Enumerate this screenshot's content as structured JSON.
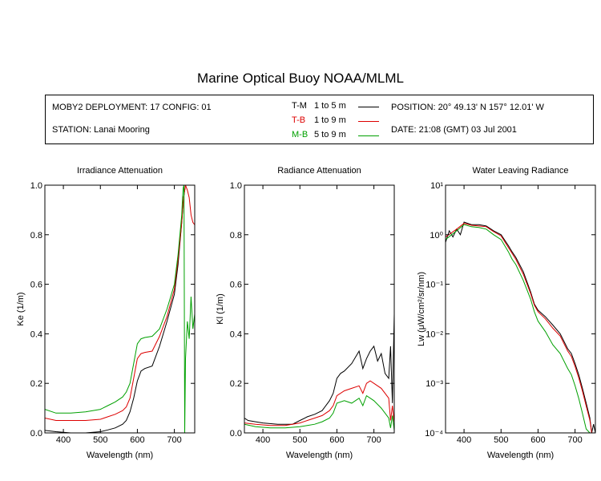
{
  "title": "Marine Optical Buoy NOAA/MLML",
  "info": {
    "deployment": "MOBY2 DEPLOYMENT: 17 CONFIG: 01",
    "station": "STATION: Lanai Mooring",
    "position": "POSITION: 20° 49.13' N   157° 12.01' W",
    "date": "DATE: 21:08 (GMT) 03 Jul 2001",
    "legend": [
      {
        "code": "T-M",
        "range": "1 to 5  m",
        "color": "#000000"
      },
      {
        "code": "T-B",
        "range": "1 to 9  m",
        "color": "#dd0000"
      },
      {
        "code": "M-B",
        "range": "5 to 9  m",
        "color": "#00a000"
      }
    ]
  },
  "chart_data": [
    {
      "type": "line",
      "title": "Irradiance Attenuation",
      "xlabel": "Wavelength (nm)",
      "ylabel": "Ke  (1/m)",
      "xlim": [
        350,
        755
      ],
      "ylim": [
        0,
        1
      ],
      "xticks": [
        "400",
        "500",
        "600",
        "700"
      ],
      "yticks": [
        "0.0",
        "0.2",
        "0.4",
        "0.6",
        "0.8",
        "1.0"
      ],
      "series": [
        {
          "code": "T-M",
          "color": "#000000",
          "x": [
            350,
            380,
            420,
            460,
            500,
            520,
            540,
            560,
            570,
            580,
            590,
            600,
            610,
            620,
            640,
            660,
            680,
            700,
            710,
            720,
            725,
            730
          ],
          "y": [
            0.01,
            0.005,
            0.0,
            0.0,
            0.005,
            0.012,
            0.02,
            0.035,
            0.05,
            0.085,
            0.14,
            0.21,
            0.25,
            0.26,
            0.27,
            0.35,
            0.45,
            0.56,
            0.68,
            0.85,
            0.95,
            1.0
          ]
        },
        {
          "code": "T-B",
          "color": "#dd0000",
          "x": [
            350,
            380,
            420,
            460,
            500,
            520,
            540,
            560,
            570,
            580,
            590,
            600,
            610,
            620,
            640,
            660,
            680,
            700,
            710,
            720,
            725,
            730,
            735,
            740,
            745,
            750,
            755
          ],
          "y": [
            0.06,
            0.05,
            0.05,
            0.05,
            0.055,
            0.065,
            0.075,
            0.09,
            0.105,
            0.14,
            0.22,
            0.3,
            0.32,
            0.325,
            0.33,
            0.39,
            0.47,
            0.58,
            0.7,
            0.85,
            0.95,
            1.0,
            0.98,
            0.95,
            0.88,
            0.85,
            0.84
          ]
        },
        {
          "code": "M-B",
          "color": "#00a000",
          "x": [
            350,
            380,
            420,
            460,
            500,
            520,
            540,
            560,
            570,
            580,
            590,
            600,
            610,
            620,
            640,
            660,
            680,
            700,
            710,
            720,
            722,
            724,
            726,
            728,
            730,
            735,
            740,
            745,
            750,
            755
          ],
          "y": [
            0.095,
            0.08,
            0.08,
            0.085,
            0.095,
            0.11,
            0.125,
            0.145,
            0.165,
            0.2,
            0.28,
            0.36,
            0.38,
            0.385,
            0.39,
            0.42,
            0.5,
            0.6,
            0.72,
            0.88,
            0.95,
            0.99,
            1.0,
            0.0,
            0.3,
            0.45,
            0.38,
            0.55,
            0.42,
            0.48
          ]
        }
      ]
    },
    {
      "type": "line",
      "title": "Radiance Attenuation",
      "xlabel": "Wavelength (nm)",
      "ylabel": "Kl  (1/m)",
      "xlim": [
        350,
        755
      ],
      "ylim": [
        0,
        1
      ],
      "xticks": [
        "400",
        "500",
        "600",
        "700"
      ],
      "yticks": [
        "0.0",
        "0.2",
        "0.4",
        "0.6",
        "0.8",
        "1.0"
      ],
      "series": [
        {
          "code": "T-M",
          "color": "#000000",
          "x": [
            350,
            360,
            380,
            400,
            440,
            480,
            500,
            520,
            540,
            560,
            580,
            590,
            600,
            610,
            620,
            640,
            660,
            670,
            680,
            690,
            700,
            710,
            720,
            730,
            740,
            745,
            750,
            755
          ],
          "y": [
            0.06,
            0.05,
            0.045,
            0.04,
            0.035,
            0.035,
            0.05,
            0.065,
            0.075,
            0.09,
            0.13,
            0.16,
            0.22,
            0.24,
            0.25,
            0.28,
            0.33,
            0.26,
            0.3,
            0.33,
            0.35,
            0.29,
            0.32,
            0.24,
            0.22,
            0.35,
            0.12,
            0.48
          ]
        },
        {
          "code": "T-B",
          "color": "#dd0000",
          "x": [
            350,
            380,
            420,
            460,
            500,
            520,
            540,
            560,
            580,
            590,
            600,
            620,
            640,
            660,
            670,
            680,
            690,
            700,
            720,
            740,
            745,
            750,
            755
          ],
          "y": [
            0.04,
            0.035,
            0.03,
            0.03,
            0.04,
            0.05,
            0.06,
            0.07,
            0.09,
            0.11,
            0.15,
            0.17,
            0.18,
            0.19,
            0.16,
            0.2,
            0.21,
            0.2,
            0.18,
            0.14,
            0.05,
            0.11,
            0.04
          ]
        },
        {
          "code": "M-B",
          "color": "#00a000",
          "x": [
            350,
            380,
            420,
            460,
            500,
            520,
            540,
            560,
            580,
            590,
            600,
            620,
            640,
            660,
            670,
            680,
            690,
            700,
            720,
            740,
            745,
            750,
            755
          ],
          "y": [
            0.035,
            0.025,
            0.02,
            0.02,
            0.025,
            0.03,
            0.035,
            0.045,
            0.06,
            0.08,
            0.12,
            0.13,
            0.12,
            0.14,
            0.11,
            0.15,
            0.14,
            0.13,
            0.1,
            0.06,
            0.02,
            0.07,
            0.01
          ]
        }
      ]
    },
    {
      "type": "line",
      "title": "Water Leaving Radiance",
      "xlabel": "Wavelength (nm)",
      "ylabel": "Lw  (μW/cm²/sr/nm)",
      "xscale": "linear",
      "yscale": "log",
      "xlim": [
        350,
        755
      ],
      "ylim": [
        0.0001,
        10
      ],
      "xticks": [
        "400",
        "500",
        "600",
        "700"
      ],
      "yticks": [
        "10⁻⁴",
        "10⁻³",
        "10⁻²",
        "10⁻¹",
        "10⁰",
        "10¹"
      ],
      "series": [
        {
          "code": "T-M",
          "color": "#000000",
          "x": [
            350,
            360,
            370,
            380,
            390,
            400,
            420,
            440,
            460,
            480,
            500,
            520,
            530,
            540,
            560,
            580,
            590,
            600,
            620,
            640,
            660,
            680,
            690,
            700,
            710,
            720,
            730,
            740,
            745,
            750,
            755
          ],
          "y": [
            0.7,
            1.2,
            0.9,
            1.3,
            1.0,
            1.8,
            1.6,
            1.6,
            1.5,
            1.2,
            1.0,
            0.6,
            0.45,
            0.35,
            0.18,
            0.07,
            0.04,
            0.03,
            0.022,
            0.015,
            0.01,
            0.005,
            0.004,
            0.0025,
            0.0015,
            0.0008,
            0.0004,
            0.0002,
            0.0001,
            0.00015,
            0.0001
          ]
        },
        {
          "code": "T-B",
          "color": "#dd0000",
          "x": [
            350,
            380,
            400,
            420,
            440,
            460,
            480,
            500,
            520,
            530,
            540,
            560,
            580,
            590,
            600,
            620,
            640,
            660,
            680,
            690,
            700,
            710,
            720,
            730,
            740,
            745
          ],
          "y": [
            0.9,
            1.3,
            1.7,
            1.55,
            1.5,
            1.45,
            1.15,
            0.95,
            0.55,
            0.42,
            0.32,
            0.16,
            0.065,
            0.038,
            0.028,
            0.02,
            0.013,
            0.009,
            0.0045,
            0.0035,
            0.0022,
            0.0013,
            0.0007,
            0.00035,
            0.00018,
            0.0001
          ]
        },
        {
          "code": "M-B",
          "color": "#00a000",
          "x": [
            350,
            380,
            400,
            420,
            440,
            460,
            480,
            500,
            520,
            530,
            540,
            560,
            580,
            590,
            600,
            620,
            640,
            660,
            680,
            690,
            700,
            710,
            720,
            730,
            740
          ],
          "y": [
            0.8,
            1.2,
            1.6,
            1.45,
            1.4,
            1.3,
            1.0,
            0.8,
            0.45,
            0.32,
            0.25,
            0.12,
            0.05,
            0.028,
            0.018,
            0.011,
            0.006,
            0.004,
            0.002,
            0.0015,
            0.0009,
            0.0005,
            0.00025,
            0.00012,
            0.0001
          ]
        }
      ]
    }
  ]
}
